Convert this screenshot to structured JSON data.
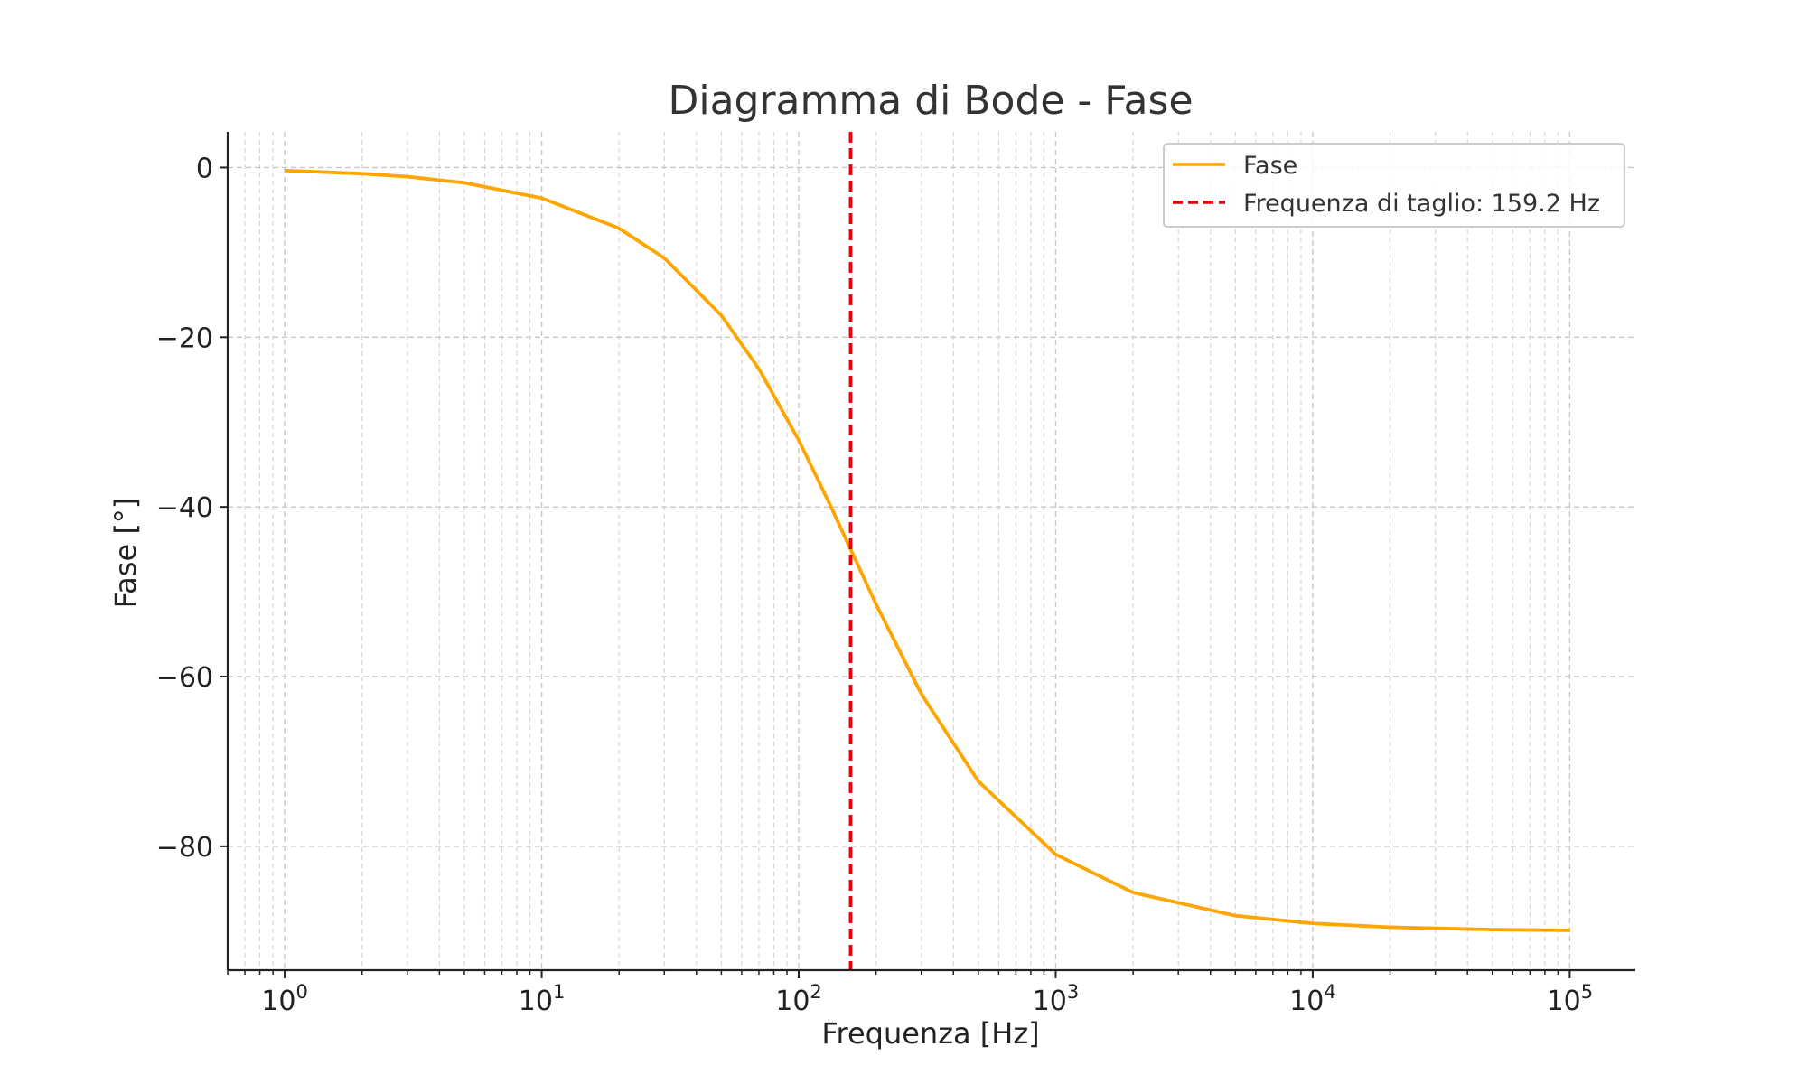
{
  "chart_data": {
    "type": "line",
    "title": "Diagramma di Bode - Fase",
    "xlabel": "Frequenza [Hz]",
    "ylabel": "Fase [°]",
    "x_scale": "log",
    "xlim": [
      0.6,
      180000
    ],
    "ylim": [
      -94.6,
      4.2
    ],
    "x_ticks": [
      {
        "value": 1,
        "base": "10",
        "exp": "0"
      },
      {
        "value": 10,
        "base": "10",
        "exp": "1"
      },
      {
        "value": 100,
        "base": "10",
        "exp": "2"
      },
      {
        "value": 1000,
        "base": "10",
        "exp": "3"
      },
      {
        "value": 10000,
        "base": "10",
        "exp": "4"
      },
      {
        "value": 100000,
        "base": "10",
        "exp": "5"
      }
    ],
    "y_ticks": [
      {
        "value": 0,
        "label": "0"
      },
      {
        "value": -20,
        "label": "−20"
      },
      {
        "value": -40,
        "label": "−40"
      },
      {
        "value": -60,
        "label": "−60"
      },
      {
        "value": -80,
        "label": "−80"
      }
    ],
    "grid": true,
    "legend_position": "top-right",
    "cutoff_frequency": 159.2,
    "series": [
      {
        "name": "Fase",
        "color": "#FFA500",
        "x": [
          1,
          2,
          3,
          5,
          10,
          20,
          30,
          50,
          70,
          100,
          130,
          159.2,
          200,
          300,
          500,
          1000,
          2000,
          5000,
          10000,
          20000,
          50000,
          100000
        ],
        "y": [
          -0.36,
          -0.72,
          -1.08,
          -1.8,
          -3.6,
          -7.16,
          -10.67,
          -17.43,
          -23.73,
          -32.14,
          -39.24,
          -45.0,
          -51.48,
          -62.05,
          -72.34,
          -80.96,
          -85.45,
          -88.18,
          -89.09,
          -89.54,
          -89.82,
          -89.91
        ]
      },
      {
        "name": "Frequenza di taglio: 159.2 Hz",
        "color": "#E8000B",
        "style": "dashed",
        "x": [
          159.2,
          159.2
        ],
        "y": [
          -94.6,
          4.2
        ]
      }
    ]
  }
}
